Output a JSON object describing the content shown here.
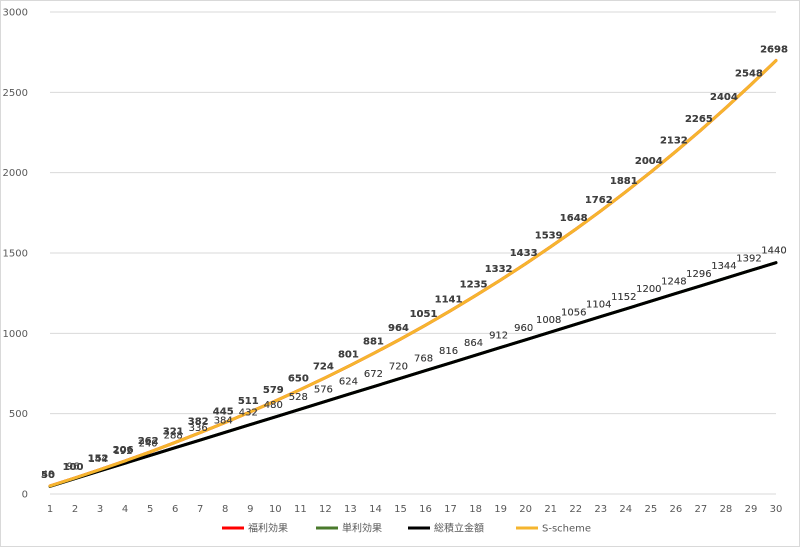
{
  "chart_data": {
    "type": "line",
    "title": "",
    "xlabel": "",
    "ylabel": "",
    "ylim": [
      0,
      3000
    ],
    "yticks": [
      "0",
      "500",
      "1000",
      "1500",
      "2000",
      "2500",
      "3000"
    ],
    "grid": true,
    "legend_position": "bottom",
    "x": [
      1,
      2,
      3,
      4,
      5,
      6,
      7,
      8,
      9,
      10,
      11,
      12,
      13,
      14,
      15,
      16,
      17,
      18,
      19,
      20,
      21,
      22,
      23,
      24,
      25,
      26,
      27,
      28,
      29,
      30
    ],
    "series": [
      {
        "name": "福利効果",
        "color": "#ff0000",
        "values": [
          50,
          100,
          152,
          206,
          262,
          321,
          382,
          445,
          511,
          579,
          650,
          724,
          801,
          881,
          964,
          1051,
          1141,
          1235,
          1332,
          1433,
          1539,
          1648,
          1762,
          1881,
          2004,
          2132,
          2265,
          2404,
          2548,
          2698
        ]
      },
      {
        "name": "単利効果",
        "color": "#4a7a2c",
        "values": [
          48,
          96,
          144,
          192,
          240,
          288,
          336,
          384,
          432,
          480,
          528,
          576,
          624,
          672,
          720,
          768,
          816,
          864,
          912,
          960,
          1008,
          1056,
          1104,
          1152,
          1200,
          1248,
          1296,
          1344,
          1392,
          1440
        ]
      },
      {
        "name": "総積立金額",
        "color": "#000000",
        "values": [
          48,
          96,
          144,
          192,
          240,
          288,
          336,
          384,
          432,
          480,
          528,
          576,
          624,
          672,
          720,
          768,
          816,
          864,
          912,
          960,
          1008,
          1056,
          1104,
          1152,
          1200,
          1248,
          1296,
          1344,
          1392,
          1440
        ]
      },
      {
        "name": "S-scheme",
        "color": "#f5b52e",
        "values": [
          50,
          100,
          152,
          206,
          262,
          321,
          382,
          445,
          511,
          579,
          650,
          724,
          801,
          881,
          964,
          1051,
          1141,
          1235,
          1332,
          1433,
          1539,
          1648,
          1762,
          1881,
          2004,
          2132,
          2265,
          2404,
          2548,
          2698
        ]
      }
    ]
  }
}
